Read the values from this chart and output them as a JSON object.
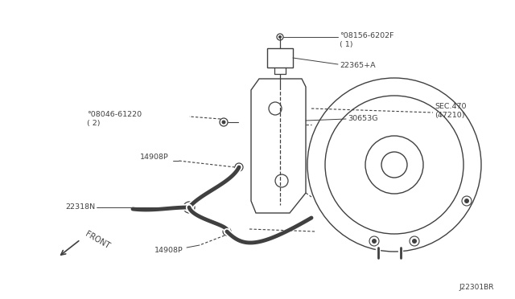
{
  "bg_color": "#ffffff",
  "line_color": "#404040",
  "text_color": "#404040",
  "fig_width": 6.4,
  "fig_height": 3.72,
  "diagram_code": "J22301BR",
  "labels": {
    "bolt_top": "°08156-6202F\n( 1)",
    "sensor": "22365+A",
    "bracket": "30653G",
    "sec_470": "SEC.470\n(47210)",
    "bolt_left": "°08046-61220\n( 2)",
    "hose1": "14908P",
    "hose2": "14908P",
    "mount": "22318N",
    "front": "FRONT"
  }
}
